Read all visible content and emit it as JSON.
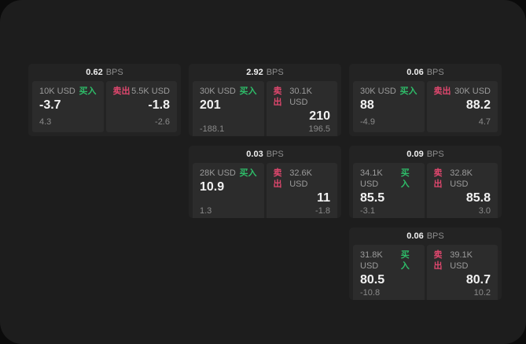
{
  "unit_label": "BPS",
  "colors": {
    "buy": "#2ebd69",
    "sell": "#e0476e"
  },
  "cards": [
    {
      "bps": "0.62",
      "buy": {
        "amount": "10K USD",
        "label": "买入",
        "value": "-3.7",
        "delta": "4.3"
      },
      "sell": {
        "label": "卖出",
        "amount": "5.5K USD",
        "value": "-1.8",
        "delta": "-2.6"
      }
    },
    {
      "bps": "2.92",
      "buy": {
        "amount": "30K USD",
        "label": "买入",
        "value": "201",
        "delta": "-188.1"
      },
      "sell": {
        "label": "卖出",
        "amount": "30.1K USD",
        "value": "210",
        "delta": "196.5"
      }
    },
    {
      "bps": "0.06",
      "buy": {
        "amount": "30K USD",
        "label": "买入",
        "value": "88",
        "delta": "-4.9"
      },
      "sell": {
        "label": "卖出",
        "amount": "30K USD",
        "value": "88.2",
        "delta": "4.7"
      }
    },
    {
      "bps": "0.03",
      "buy": {
        "amount": "28K USD",
        "label": "买入",
        "value": "10.9",
        "delta": "1.3"
      },
      "sell": {
        "label": "卖出",
        "amount": "32.6K USD",
        "value": "11",
        "delta": "-1.8"
      }
    },
    {
      "bps": "0.09",
      "buy": {
        "amount": "34.1K USD",
        "label": "买入",
        "value": "85.5",
        "delta": "-3.1"
      },
      "sell": {
        "label": "卖出",
        "amount": "32.8K USD",
        "value": "85.8",
        "delta": "3.0"
      }
    },
    {
      "bps": "0.06",
      "buy": {
        "amount": "31.8K USD",
        "label": "买入",
        "value": "80.5",
        "delta": "-10.8"
      },
      "sell": {
        "label": "卖出",
        "amount": "39.1K USD",
        "value": "80.7",
        "delta": "10.2"
      }
    }
  ]
}
